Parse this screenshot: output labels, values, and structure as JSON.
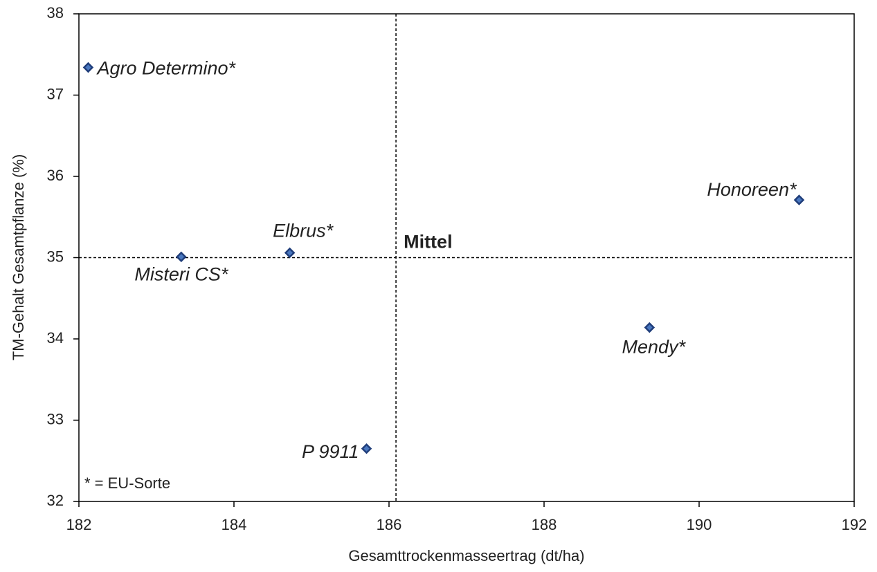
{
  "chart_data": {
    "type": "scatter",
    "xlabel": "Gesamttrockenmasseertrag  (dt/ha)",
    "ylabel": "TM-Gehalt Gesamtpflanze  (%)",
    "point_labels": [
      "Agro Determino*",
      "Misteri CS*",
      "Elbrus*",
      "P 9911",
      "Mendy*",
      "Honoreen*"
    ],
    "x": [
      182.12,
      183.32,
      184.72,
      185.71,
      189.36,
      191.29
    ],
    "values": [
      37.34,
      35.01,
      35.06,
      32.65,
      34.14,
      35.71
    ],
    "color": "#1f3d7a",
    "mean_x": 186.09,
    "mean_y": 35.0,
    "mean_label": "Mittel",
    "annotation": "*  = EU-Sorte",
    "xlim": [
      182,
      192
    ],
    "xticks": [
      182,
      184,
      186,
      188,
      190,
      192
    ],
    "ylim": [
      32,
      38
    ],
    "yticks": [
      32,
      33,
      34,
      35,
      36,
      37,
      38
    ]
  }
}
